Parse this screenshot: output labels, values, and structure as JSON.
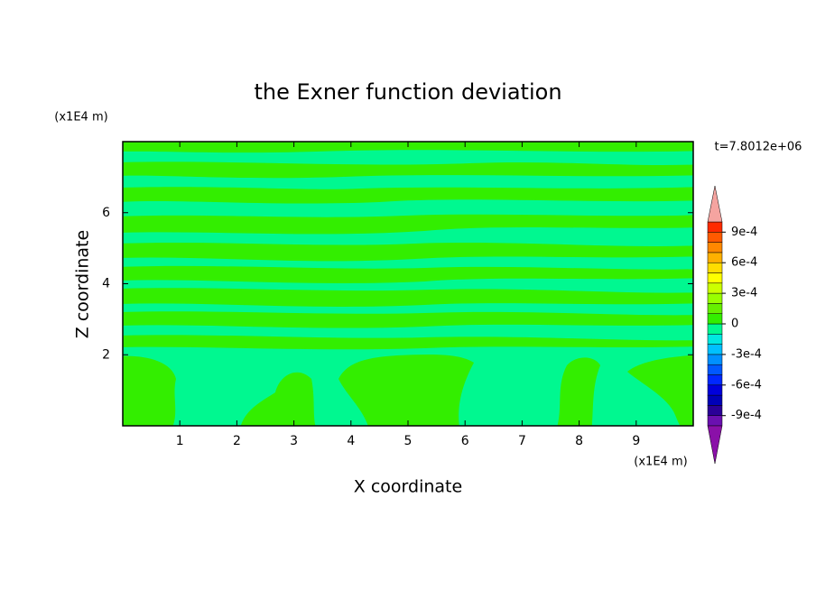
{
  "chart_data": {
    "type": "contour",
    "title": "the Exner function deviation",
    "x_label": "X coordinate",
    "y_label": "Z coordinate",
    "x_unit": "(x1E4 m)",
    "y_unit": "(x1E4 m)",
    "annotation": "t=7.8012e+06",
    "xlim": [
      0,
      10
    ],
    "xticks": [
      1,
      2,
      3,
      4,
      5,
      6,
      7,
      8,
      9
    ],
    "ylim": [
      0,
      8
    ],
    "yticks": [
      2,
      4,
      6
    ],
    "clim": [
      -0.001,
      0.001
    ],
    "colors": [
      "#6a10b0",
      "#2a0098",
      "#0000b8",
      "#0000dc",
      "#0028ff",
      "#0058ff",
      "#0090ff",
      "#00c0ff",
      "#00e8e0",
      "#00f890",
      "#33ee00",
      "#66f000",
      "#99ff00",
      "#ccff00",
      "#ffff00",
      "#ffdd00",
      "#ffb000",
      "#ff8800",
      "#ff5a00",
      "#ff2a00"
    ],
    "extend_colors": [
      "#8a10a8",
      "#f5a4a0"
    ],
    "cticks": [
      {
        "value": 0.0009,
        "label": "9e-4"
      },
      {
        "value": 0.0006,
        "label": "6e-4"
      },
      {
        "value": 0.0003,
        "label": "3e-4"
      },
      0,
      {
        "value": -0.0003,
        "label": "-3e-4"
      },
      {
        "value": -0.0006,
        "label": "-6e-4"
      },
      {
        "value": -0.0009,
        "label": "-9e-4"
      }
    ]
  }
}
